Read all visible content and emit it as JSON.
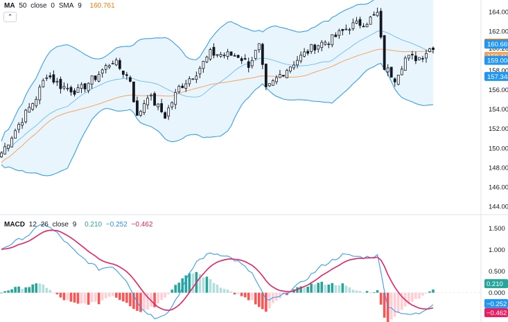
{
  "colors": {
    "up": "#26a69a",
    "down": "#ef5350",
    "ma": "#f7a35c",
    "sma": "#2196f3",
    "band_fill": "#e3f2fd",
    "macd_line": "#2196f3",
    "signal_line": "#e91e63",
    "hist_up_strong": "#26a69a",
    "hist_up_weak": "#b2dfdb",
    "hist_down_strong": "#ff5252",
    "hist_down_weak": "#ffcdd2",
    "candle_body": "#131722"
  },
  "price_legend": {
    "name": "MA",
    "params": [
      "50",
      "close",
      "0",
      "SMA",
      "9"
    ],
    "value": "160.761",
    "collapse_icon": "chevron-up-icon"
  },
  "macd_legend": {
    "name": "MACD",
    "params": [
      "12",
      "26",
      "close",
      "9"
    ],
    "values": [
      "0.210",
      "−0.252",
      "−0.462"
    ]
  },
  "price_axis": {
    "ticks": [
      "164.000",
      "162.000",
      "160.263",
      "158.000",
      "156.000",
      "154.000",
      "152.000",
      "150.000",
      "148.000",
      "146.000",
      "144.000"
    ],
    "tick_values": [
      164,
      162,
      160.263,
      158,
      156,
      154,
      152,
      150,
      148,
      146,
      144
    ],
    "badges": [
      {
        "label": "160.761",
        "value": 160.761,
        "color": "#f57c00"
      },
      {
        "label": "160.669",
        "value": 160.669,
        "color": "#2196f3"
      },
      {
        "label": "159.413",
        "value": 159.413,
        "color": "#f7a35c"
      },
      {
        "label": "159.008",
        "value": 159.008,
        "color": "#2196f3"
      },
      {
        "label": "157.348",
        "value": 157.348,
        "color": "#2196f3"
      }
    ]
  },
  "macd_axis": {
    "ticks": [
      "1.500",
      "1.000",
      "0.500",
      "0.000"
    ],
    "tick_values": [
      1.5,
      1.0,
      0.5,
      0.0
    ],
    "badges": [
      {
        "label": "0.210",
        "value": 0.21,
        "color": "#26a69a"
      },
      {
        "label": "−0.252",
        "value": -0.252,
        "color": "#2196f3"
      },
      {
        "label": "−0.462",
        "value": -0.462,
        "color": "#e91e63"
      }
    ]
  },
  "chart_data": [
    {
      "type": "candlestick",
      "title": "",
      "series_count": 125,
      "ylim": [
        143.3,
        165.2
      ],
      "anchors_close": [
        [
          0,
          149.5
        ],
        [
          6,
          153.0
        ],
        [
          10,
          155.2
        ],
        [
          13,
          157.6
        ],
        [
          17,
          156.4
        ],
        [
          22,
          155.8
        ],
        [
          27,
          157.3
        ],
        [
          32,
          159.0
        ],
        [
          37,
          157.0
        ],
        [
          39,
          153.1
        ],
        [
          42,
          155.5
        ],
        [
          47,
          153.3
        ],
        [
          51,
          156.2
        ],
        [
          56,
          157.8
        ],
        [
          60,
          159.7
        ],
        [
          64,
          159.6
        ],
        [
          68,
          159.5
        ],
        [
          71,
          158.6
        ],
        [
          74,
          160.4
        ],
        [
          76,
          155.9
        ],
        [
          80,
          157.5
        ],
        [
          85,
          159.1
        ],
        [
          90,
          160.5
        ],
        [
          95,
          161.2
        ],
        [
          100,
          162.5
        ],
        [
          105,
          163.0
        ],
        [
          108,
          163.8
        ],
        [
          110,
          158.3
        ],
        [
          113,
          157.2
        ],
        [
          116,
          159.2
        ],
        [
          120,
          159.3
        ],
        [
          124,
          160.5
        ]
      ],
      "overlays": [
        "MA 50 close 0 SMA 9",
        "Bollinger Bands"
      ],
      "band_fill": "#e3f2fd"
    },
    {
      "type": "histogram",
      "title": "",
      "ylim": [
        -0.68,
        1.78
      ],
      "anchors_macd": [
        [
          0,
          1.02
        ],
        [
          8,
          1.35
        ],
        [
          12,
          1.62
        ],
        [
          16,
          1.38
        ],
        [
          22,
          0.88
        ],
        [
          28,
          0.55
        ],
        [
          32,
          0.62
        ],
        [
          36,
          0.28
        ],
        [
          40,
          -0.35
        ],
        [
          44,
          -0.58
        ],
        [
          48,
          -0.45
        ],
        [
          52,
          0.12
        ],
        [
          56,
          0.72
        ],
        [
          60,
          0.92
        ],
        [
          64,
          0.88
        ],
        [
          68,
          0.72
        ],
        [
          72,
          0.45
        ],
        [
          76,
          -0.18
        ],
        [
          80,
          -0.1
        ],
        [
          86,
          0.22
        ],
        [
          92,
          0.62
        ],
        [
          98,
          0.88
        ],
        [
          104,
          0.82
        ],
        [
          108,
          0.86
        ],
        [
          111,
          -0.32
        ],
        [
          116,
          -0.52
        ],
        [
          120,
          -0.48
        ],
        [
          124,
          -0.252
        ]
      ]
    }
  ]
}
